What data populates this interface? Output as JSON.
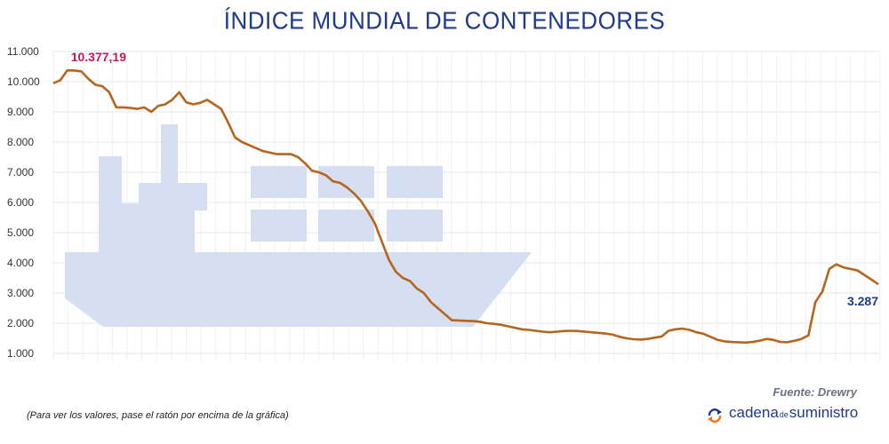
{
  "chart_data": {
    "type": "line",
    "title": "ÍNDICE MUNDIAL DE CONTENEDORES",
    "xlabel": "",
    "ylabel": "",
    "ylim": [
      1000,
      11000
    ],
    "y_tick_labels": [
      "1.000",
      "2.000",
      "3.000",
      "4.000",
      "5.000",
      "6.000",
      "7.000",
      "8.000",
      "9.000",
      "10.000",
      "11.000"
    ],
    "grid": true,
    "series": [
      {
        "color": "#b5651d",
        "values": [
          9950,
          10050,
          10377,
          10370,
          10340,
          10100,
          9900,
          9850,
          9650,
          9150,
          9150,
          9130,
          9100,
          9150,
          9000,
          9200,
          9250,
          9400,
          9650,
          9320,
          9250,
          9300,
          9400,
          9250,
          9100,
          8650,
          8150,
          8000,
          7900,
          7800,
          7700,
          7650,
          7600,
          7600,
          7600,
          7500,
          7300,
          7050,
          7000,
          6900,
          6700,
          6650,
          6500,
          6300,
          6050,
          5700,
          5300,
          4700,
          4100,
          3700,
          3500,
          3400,
          3150,
          3000,
          2700,
          2500,
          2300,
          2100,
          2090,
          2080,
          2070,
          2050,
          2000,
          1980,
          1950,
          1900,
          1850,
          1800,
          1780,
          1750,
          1720,
          1700,
          1720,
          1740,
          1750,
          1740,
          1720,
          1700,
          1680,
          1660,
          1620,
          1550,
          1500,
          1470,
          1460,
          1480,
          1520,
          1560,
          1750,
          1800,
          1820,
          1780,
          1700,
          1650,
          1550,
          1450,
          1400,
          1380,
          1370,
          1360,
          1380,
          1420,
          1480,
          1450,
          1380,
          1370,
          1420,
          1480,
          1600,
          2700,
          3050,
          3800,
          3950,
          3850,
          3800,
          3750,
          3600,
          3450,
          3287
        ]
      }
    ],
    "annotations": [
      {
        "text": "10.377,19",
        "color": "#c2185b",
        "point_index": 2,
        "value": 10377.19
      },
      {
        "text": "3.287",
        "color": "#1f3a8a",
        "point_index": 118,
        "value": 3287
      }
    ],
    "background_icon": "container-ship-icon"
  },
  "footer": {
    "note": "(Para ver los valores, pase el ratón por encima de la gráfica)",
    "source": "Fuente: Drewry",
    "brand_part1": "cadena",
    "brand_part2": "de",
    "brand_part3": "suministro"
  },
  "colors": {
    "title": "#1f3a8a",
    "line": "#b5651d",
    "ship": "#d6def2",
    "grid": "#e5e7eb"
  }
}
